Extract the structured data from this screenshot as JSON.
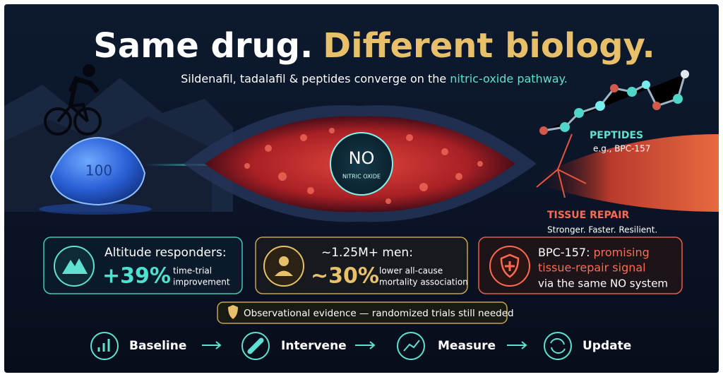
{
  "title": {
    "part1": "Same drug.",
    "part2": "Different biology."
  },
  "subtitle": {
    "text": "Sildenafil, tadalafil & peptides converge on the",
    "highlight": "nitric-oxide pathway."
  },
  "pill_label": "100",
  "vessel": {
    "label": "NO",
    "sublabel": "NITRIC OXIDE"
  },
  "peptides": {
    "label": "PEPTIDES",
    "example": "e.g., BPC-157"
  },
  "tissue": {
    "label": "TISSUE REPAIR",
    "tagline": "Stronger. Faster. Resilient."
  },
  "cards": [
    {
      "heading": "Altitude responders:",
      "stat": "+39%",
      "description": [
        "time-trial",
        "improvement"
      ]
    },
    {
      "heading": "~1.25M+ men:",
      "stat": "~30%",
      "description": [
        "lower all-cause",
        "mortality association"
      ]
    },
    {
      "heading": "BPC-157:",
      "highlight": [
        "promising",
        "tissue-repair signal"
      ],
      "description": "via the same NO system"
    }
  ],
  "note": "Observational evidence — randomized trials still needed",
  "steps": [
    "Baseline",
    "Intervene",
    "Measure",
    "Update"
  ]
}
